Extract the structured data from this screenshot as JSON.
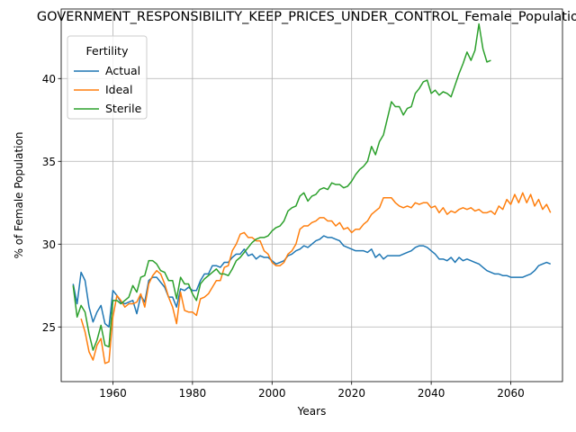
{
  "chart_data": {
    "type": "line",
    "title": "GOVERNMENT_RESPONSIBILITY_KEEP_PRICES_UNDER_CONTROL_Female_Population",
    "xlabel": "Years",
    "ylabel": "% of Female Population",
    "xlim": [
      1947,
      2073
    ],
    "ylim": [
      21.7,
      44.2
    ],
    "xticks": [
      1960,
      1980,
      2000,
      2020,
      2040,
      2060
    ],
    "yticks": [
      25,
      30,
      35,
      40
    ],
    "grid": true,
    "legend": {
      "title": "Fertility",
      "placement": "top-left"
    },
    "series": [
      {
        "name": "Actual",
        "color": "#1f77b4",
        "x": [
          1950,
          1951,
          1952,
          1953,
          1954,
          1955,
          1956,
          1957,
          1958,
          1959,
          1960,
          1961,
          1962,
          1963,
          1964,
          1965,
          1966,
          1967,
          1968,
          1969,
          1970,
          1971,
          1972,
          1973,
          1974,
          1975,
          1976,
          1977,
          1978,
          1979,
          1980,
          1981,
          1982,
          1983,
          1984,
          1985,
          1986,
          1987,
          1988,
          1989,
          1990,
          1991,
          1992,
          1993,
          1994,
          1995,
          1996,
          1997,
          1998,
          1999,
          2000,
          2001,
          2002,
          2003,
          2004,
          2005,
          2006,
          2007,
          2008,
          2009,
          2010,
          2011,
          2012,
          2013,
          2014,
          2015,
          2016,
          2017,
          2018,
          2019,
          2020,
          2021,
          2022,
          2023,
          2024,
          2025,
          2026,
          2027,
          2028,
          2029,
          2030,
          2031,
          2032,
          2033,
          2034,
          2035,
          2036,
          2037,
          2038,
          2039,
          2040,
          2041,
          2042,
          2043,
          2044,
          2045,
          2046,
          2047,
          2048,
          2049,
          2050,
          2051,
          2052,
          2053,
          2054,
          2055,
          2056,
          2057,
          2058,
          2059,
          2060,
          2061,
          2062,
          2063,
          2064,
          2065,
          2066,
          2067,
          2068,
          2069,
          2070
        ],
        "values": [
          27.6,
          26.4,
          28.3,
          27.8,
          26.2,
          25.3,
          25.9,
          26.3,
          25.2,
          25.0,
          27.2,
          26.9,
          26.5,
          26.4,
          26.5,
          26.6,
          25.8,
          26.9,
          26.5,
          27.8,
          28.0,
          28.0,
          27.7,
          27.4,
          26.8,
          26.8,
          26.2,
          27.3,
          27.2,
          27.4,
          27.2,
          27.2,
          27.8,
          28.2,
          28.2,
          28.7,
          28.7,
          28.6,
          28.9,
          28.9,
          29.2,
          29.4,
          29.4,
          29.7,
          29.3,
          29.4,
          29.1,
          29.3,
          29.2,
          29.2,
          29.0,
          28.8,
          28.9,
          29.0,
          29.3,
          29.4,
          29.6,
          29.7,
          29.9,
          29.8,
          30.0,
          30.2,
          30.3,
          30.5,
          30.4,
          30.4,
          30.3,
          30.2,
          29.9,
          29.8,
          29.7,
          29.6,
          29.6,
          29.6,
          29.5,
          29.7,
          29.2,
          29.4,
          29.1,
          29.3,
          29.3,
          29.3,
          29.3,
          29.4,
          29.5,
          29.6,
          29.8,
          29.9,
          29.9,
          29.8,
          29.6,
          29.4,
          29.1,
          29.1,
          29.0,
          29.2,
          28.9,
          29.2,
          29.0,
          29.1,
          29.0,
          28.9,
          28.8,
          28.6,
          28.4,
          28.3,
          28.2,
          28.2,
          28.1,
          28.1,
          28.0,
          28.0,
          28.0,
          28.0,
          28.1,
          28.2,
          28.4,
          28.7,
          28.8,
          28.9,
          28.8
        ]
      },
      {
        "name": "Ideal",
        "color": "#ff7f0e",
        "x": [
          1952,
          1953,
          1954,
          1955,
          1956,
          1957,
          1958,
          1959,
          1960,
          1961,
          1962,
          1963,
          1964,
          1965,
          1966,
          1967,
          1968,
          1969,
          1970,
          1971,
          1972,
          1973,
          1974,
          1975,
          1976,
          1977,
          1978,
          1979,
          1980,
          1981,
          1982,
          1983,
          1984,
          1985,
          1986,
          1987,
          1988,
          1989,
          1990,
          1991,
          1992,
          1993,
          1994,
          1995,
          1996,
          1997,
          1998,
          1999,
          2000,
          2001,
          2002,
          2003,
          2004,
          2005,
          2006,
          2007,
          2008,
          2009,
          2010,
          2011,
          2012,
          2013,
          2014,
          2015,
          2016,
          2017,
          2018,
          2019,
          2020,
          2021,
          2022,
          2023,
          2024,
          2025,
          2026,
          2027,
          2028,
          2029,
          2030,
          2031,
          2032,
          2033,
          2034,
          2035,
          2036,
          2037,
          2038,
          2039,
          2040,
          2041,
          2042,
          2043,
          2044,
          2045,
          2046,
          2047,
          2048,
          2049,
          2050,
          2051,
          2052,
          2053,
          2054,
          2055,
          2056,
          2057,
          2058,
          2059,
          2060,
          2061,
          2062,
          2063,
          2064,
          2065,
          2066,
          2067,
          2068,
          2069,
          2070
        ],
        "values": [
          25.5,
          24.7,
          23.5,
          23.0,
          23.9,
          24.3,
          22.8,
          22.9,
          25.6,
          26.9,
          26.6,
          26.2,
          26.4,
          26.4,
          26.5,
          27.0,
          26.2,
          27.6,
          28.1,
          28.4,
          28.2,
          27.6,
          26.8,
          26.2,
          25.2,
          27.1,
          26.0,
          25.9,
          25.9,
          25.7,
          26.7,
          26.8,
          27.0,
          27.4,
          27.8,
          27.8,
          28.6,
          28.7,
          29.6,
          30.0,
          30.6,
          30.7,
          30.4,
          30.4,
          30.2,
          30.2,
          29.6,
          29.4,
          28.9,
          28.7,
          28.7,
          28.9,
          29.4,
          29.6,
          30.0,
          30.9,
          31.1,
          31.1,
          31.3,
          31.4,
          31.6,
          31.6,
          31.4,
          31.4,
          31.1,
          31.3,
          30.9,
          31.0,
          30.7,
          30.9,
          30.9,
          31.2,
          31.4,
          31.8,
          32.0,
          32.2,
          32.8,
          32.8,
          32.8,
          32.5,
          32.3,
          32.2,
          32.3,
          32.2,
          32.5,
          32.4,
          32.5,
          32.5,
          32.2,
          32.3,
          31.9,
          32.2,
          31.8,
          32.0,
          31.9,
          32.1,
          32.2,
          32.1,
          32.2,
          32.0,
          32.1,
          31.9,
          31.9,
          32.0,
          31.8,
          32.3,
          32.1,
          32.7,
          32.4,
          33.0,
          32.5,
          33.1,
          32.5,
          33.0,
          32.3,
          32.7,
          32.1,
          32.4,
          31.9
        ]
      },
      {
        "name": "Sterile",
        "color": "#2ca02c",
        "x": [
          1950,
          1951,
          1952,
          1953,
          1954,
          1955,
          1956,
          1957,
          1958,
          1959,
          1960,
          1961,
          1962,
          1963,
          1964,
          1965,
          1966,
          1967,
          1968,
          1969,
          1970,
          1971,
          1972,
          1973,
          1974,
          1975,
          1976,
          1977,
          1978,
          1979,
          1980,
          1981,
          1982,
          1983,
          1984,
          1985,
          1986,
          1987,
          1988,
          1989,
          1990,
          1991,
          1992,
          1993,
          1994,
          1995,
          1996,
          1997,
          1998,
          1999,
          2000,
          2001,
          2002,
          2003,
          2004,
          2005,
          2006,
          2007,
          2008,
          2009,
          2010,
          2011,
          2012,
          2013,
          2014,
          2015,
          2016,
          2017,
          2018,
          2019,
          2020,
          2021,
          2022,
          2023,
          2024,
          2025,
          2026,
          2027,
          2028,
          2029,
          2030,
          2031,
          2032,
          2033,
          2034,
          2035,
          2036,
          2037,
          2038,
          2039,
          2040,
          2041,
          2042,
          2043,
          2044,
          2045,
          2046,
          2047,
          2048,
          2049,
          2050,
          2051,
          2052,
          2053,
          2054,
          2055
        ],
        "values": [
          27.5,
          25.6,
          26.3,
          25.9,
          24.6,
          23.6,
          24.2,
          25.1,
          23.9,
          23.8,
          26.6,
          26.6,
          26.4,
          26.6,
          26.8,
          27.5,
          27.1,
          28.0,
          28.1,
          29.0,
          29.0,
          28.8,
          28.4,
          28.3,
          27.8,
          27.8,
          26.7,
          28.0,
          27.6,
          27.6,
          27.0,
          26.6,
          27.6,
          27.9,
          28.1,
          28.3,
          28.5,
          28.2,
          28.2,
          28.1,
          28.5,
          29.0,
          29.2,
          29.5,
          29.8,
          30.1,
          30.3,
          30.4,
          30.4,
          30.5,
          30.8,
          31.0,
          31.1,
          31.4,
          32.0,
          32.2,
          32.3,
          32.9,
          33.1,
          32.6,
          32.9,
          33.0,
          33.3,
          33.4,
          33.3,
          33.7,
          33.6,
          33.6,
          33.4,
          33.5,
          33.8,
          34.2,
          34.5,
          34.7,
          35.0,
          35.9,
          35.4,
          36.2,
          36.6,
          37.6,
          38.6,
          38.3,
          38.3,
          37.8,
          38.2,
          38.3,
          39.1,
          39.4,
          39.8,
          39.9,
          39.1,
          39.3,
          39.0,
          39.2,
          39.1,
          38.9,
          39.6,
          40.3,
          40.9,
          41.6,
          41.1,
          41.7,
          43.3,
          41.8,
          41.0,
          41.1
        ]
      }
    ]
  }
}
